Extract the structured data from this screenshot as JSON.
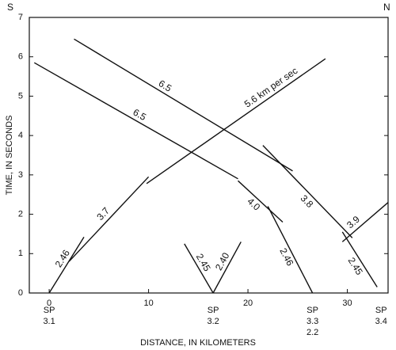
{
  "chart_data": {
    "type": "line",
    "xlabel": "DISTANCE, IN KILOMETERS",
    "ylabel": "TIME, IN SECONDS",
    "corner_labels": [
      "S",
      "N"
    ],
    "xlim": [
      -2,
      34.1
    ],
    "ylim": [
      0,
      7
    ],
    "xticks": [
      0,
      10,
      20,
      30
    ],
    "yticks": [
      0,
      1,
      2,
      3,
      4,
      5,
      6,
      7
    ],
    "color": "#111111",
    "series": [
      {
        "name": "2.46",
        "x": [
          0,
          3.5
        ],
        "values": [
          0,
          1.42
        ]
      },
      {
        "name": "3.7",
        "x": [
          2,
          10
        ],
        "values": [
          0.8,
          2.95
        ]
      },
      {
        "name": "5.6 km per sec",
        "x": [
          9.8,
          27.8
        ],
        "values": [
          2.78,
          5.95
        ]
      },
      {
        "name": "6.5",
        "x": [
          -1.5,
          19
        ],
        "values": [
          5.85,
          2.9
        ]
      },
      {
        "name": "4.0",
        "x": [
          19,
          23.5
        ],
        "values": [
          2.85,
          1.8
        ]
      },
      {
        "name": "2.46",
        "x": [
          22,
          26.5
        ],
        "values": [
          2.2,
          0
        ]
      },
      {
        "name": "6.5",
        "x": [
          2.5,
          24.5
        ],
        "values": [
          6.45,
          3.1
        ]
      },
      {
        "name": "3.8",
        "x": [
          21.5,
          30.5
        ],
        "values": [
          3.75,
          1.4
        ]
      },
      {
        "name": "2.45",
        "x": [
          29.5,
          33
        ],
        "values": [
          1.55,
          0.15
        ]
      },
      {
        "name": "3.9",
        "x": [
          29.5,
          34.1
        ],
        "values": [
          1.3,
          2.3
        ]
      },
      {
        "name": "2.45",
        "x": [
          13.6,
          16.5
        ],
        "values": [
          1.25,
          0
        ]
      },
      {
        "name": "2.40",
        "x": [
          16.5,
          19.3
        ],
        "values": [
          0,
          1.3
        ]
      }
    ],
    "annotations": [
      {
        "x": 0,
        "lines": [
          "SP",
          "3.1"
        ]
      },
      {
        "x": 16.5,
        "lines": [
          "SP",
          "3.2"
        ]
      },
      {
        "x": 26.5,
        "lines": [
          "SP",
          "3.3",
          "2.2"
        ]
      },
      {
        "x": 33.4,
        "lines": [
          "SP",
          "3.4"
        ]
      }
    ]
  }
}
